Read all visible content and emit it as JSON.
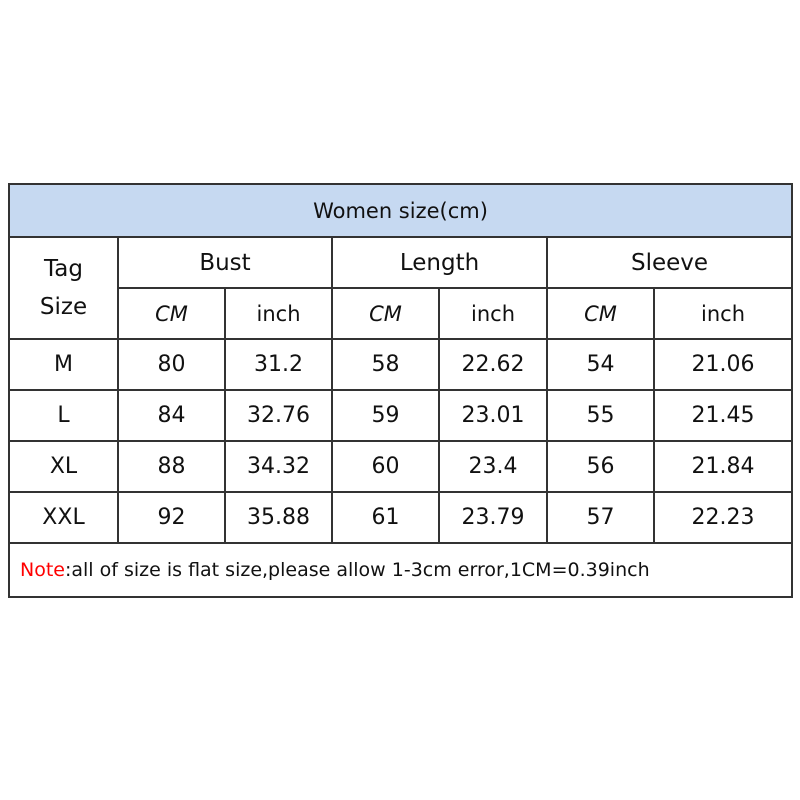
{
  "title": "Women size(cm)",
  "tag_header": [
    "Tag",
    "Size"
  ],
  "groups": [
    "Bust",
    "Length",
    "Sleeve"
  ],
  "sub_headers": [
    "CM",
    "inch",
    "CM",
    "inch",
    "CM",
    "inch"
  ],
  "rows": [
    [
      "M",
      "80",
      "31.2",
      "58",
      "22.62",
      "54",
      "21.06"
    ],
    [
      "L",
      "84",
      "32.76",
      "59",
      "23.01",
      "55",
      "21.45"
    ],
    [
      "XL",
      "88",
      "34.32",
      "60",
      "23.4",
      "56",
      "21.84"
    ],
    [
      "XXL",
      "92",
      "35.88",
      "61",
      "23.79",
      "57",
      "22.23"
    ]
  ],
  "note": {
    "label": "Note",
    "text": ":all of size is flat size,please allow 1-3cm error,1CM=0.39inch",
    "label_color": "#ff0000"
  },
  "header_bg": "#c6d9f1"
}
